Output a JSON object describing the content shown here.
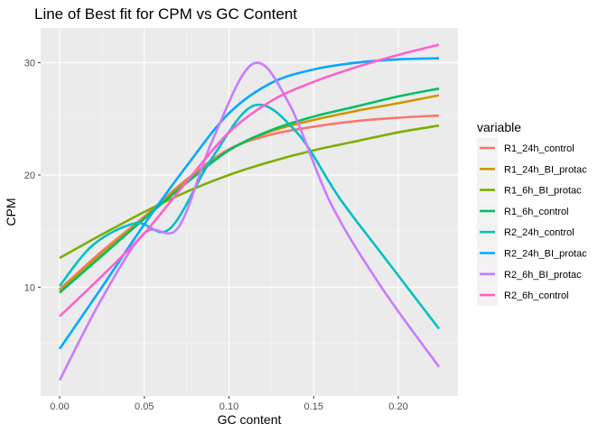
{
  "chart_data": {
    "type": "line",
    "title": "Line of Best fit for CPM vs GC Content",
    "xlabel": "GC content",
    "ylabel": "CPM",
    "xlim": [
      -0.0112,
      0.2352
    ],
    "ylim": [
      0.3,
      33.1
    ],
    "xticks": [
      0.0,
      0.05,
      0.1,
      0.15,
      0.2
    ],
    "xtick_labels": [
      "0.00",
      "0.05",
      "0.10",
      "0.15",
      "0.20"
    ],
    "yticks": [
      10,
      20,
      30
    ],
    "ytick_labels": [
      "10",
      "20",
      "30"
    ],
    "grid": true,
    "legend": {
      "title": "variable",
      "position": "right"
    },
    "background": "#ebebeb",
    "series": [
      {
        "name": "R1_24h_control",
        "color": "#F8766D",
        "x": [
          0.0,
          0.025,
          0.05,
          0.075,
          0.1,
          0.125,
          0.15,
          0.175,
          0.2,
          0.224
        ],
        "y": [
          9.8,
          13.2,
          16.3,
          19.6,
          22.3,
          23.6,
          24.3,
          24.8,
          25.1,
          25.3
        ]
      },
      {
        "name": "R1_24h_BI_protac",
        "color": "#CD9600",
        "x": [
          0.0,
          0.025,
          0.05,
          0.075,
          0.1,
          0.125,
          0.15,
          0.175,
          0.2,
          0.224
        ],
        "y": [
          9.7,
          13.0,
          16.2,
          19.5,
          22.2,
          23.9,
          24.9,
          25.7,
          26.4,
          27.1
        ]
      },
      {
        "name": "R1_6h_BI_protac",
        "color": "#7CAE00",
        "x": [
          0.0,
          0.025,
          0.05,
          0.075,
          0.1,
          0.125,
          0.15,
          0.175,
          0.2,
          0.224
        ],
        "y": [
          12.6,
          14.7,
          16.7,
          18.5,
          20.0,
          21.2,
          22.2,
          23.0,
          23.8,
          24.4
        ]
      },
      {
        "name": "R1_6h_control",
        "color": "#00BE67",
        "x": [
          0.0,
          0.025,
          0.05,
          0.075,
          0.1,
          0.125,
          0.15,
          0.175,
          0.2,
          0.224
        ],
        "y": [
          9.5,
          12.8,
          16.1,
          19.3,
          22.2,
          24.0,
          25.2,
          26.1,
          27.0,
          27.7
        ]
      },
      {
        "name": "R2_24h_control",
        "color": "#00BFC4",
        "x": [
          0.0,
          0.02,
          0.045,
          0.065,
          0.09,
          0.115,
          0.14,
          0.165,
          0.19,
          0.224
        ],
        "y": [
          10.1,
          13.8,
          15.7,
          15.2,
          21.5,
          26.2,
          23.8,
          18.0,
          13.0,
          6.3
        ]
      },
      {
        "name": "R2_24h_BI_protac",
        "color": "#00A9FF",
        "x": [
          0.0,
          0.025,
          0.05,
          0.075,
          0.1,
          0.125,
          0.15,
          0.175,
          0.2,
          0.224
        ],
        "y": [
          4.5,
          10.0,
          15.6,
          20.8,
          25.5,
          28.2,
          29.4,
          30.0,
          30.3,
          30.4
        ]
      },
      {
        "name": "R2_6h_BI_protac",
        "color": "#C77CFF",
        "x": [
          0.0,
          0.025,
          0.05,
          0.07,
          0.09,
          0.114,
          0.135,
          0.16,
          0.19,
          0.224
        ],
        "y": [
          1.7,
          9.0,
          14.8,
          15.3,
          23.0,
          29.9,
          26.5,
          17.5,
          10.0,
          2.9
        ]
      },
      {
        "name": "R2_6h_control",
        "color": "#FF61CC",
        "x": [
          0.0,
          0.025,
          0.05,
          0.075,
          0.1,
          0.125,
          0.15,
          0.175,
          0.2,
          0.224
        ],
        "y": [
          7.4,
          11.0,
          14.8,
          19.4,
          23.8,
          26.6,
          28.3,
          29.6,
          30.7,
          31.6
        ]
      }
    ]
  }
}
